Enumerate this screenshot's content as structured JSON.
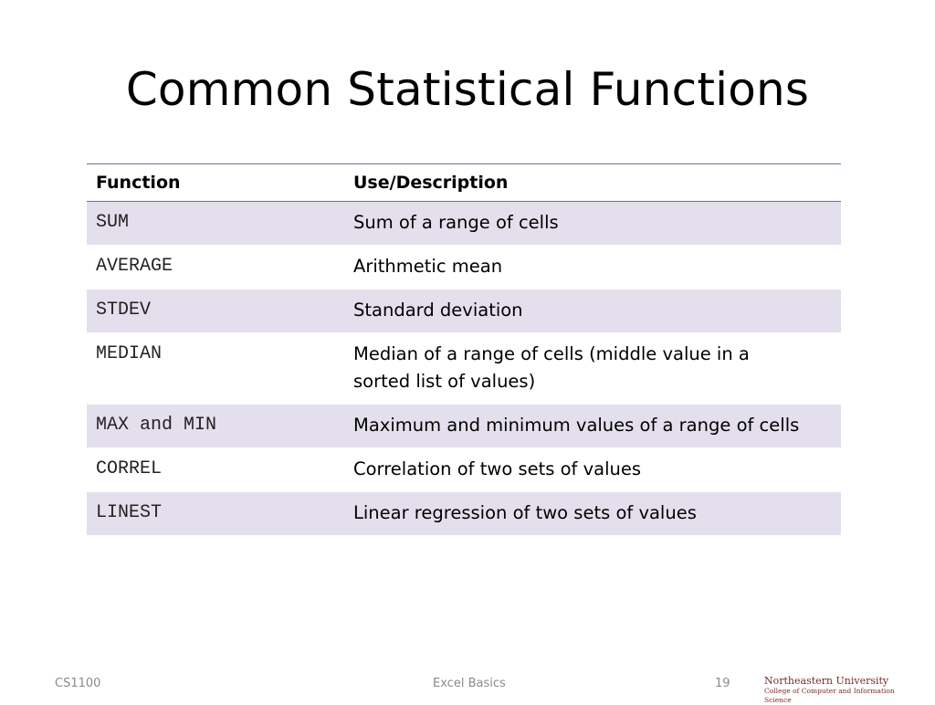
{
  "title": "Common Statistical Functions",
  "table": {
    "headers": {
      "function": "Function",
      "description": "Use/Description"
    },
    "rows": [
      {
        "function": "SUM",
        "description": "Sum of a range of cells"
      },
      {
        "function": "AVERAGE",
        "description": "Arithmetic mean"
      },
      {
        "function": "STDEV",
        "description": "Standard deviation"
      },
      {
        "function": "MEDIAN",
        "description": "Median of a range of cells (middle value in a sorted list of values)"
      },
      {
        "function": "MAX and MIN",
        "description": "Maximum and minimum values of a range of cells"
      },
      {
        "function": "CORREL",
        "description": "Correlation of two sets of values"
      },
      {
        "function": "LINEST",
        "description": "Linear regression of two sets of values"
      }
    ]
  },
  "footer": {
    "course": "CS1100",
    "topic": "Excel Basics",
    "page_number": "19"
  },
  "logo": {
    "line1": "Northeastern University",
    "line2": "College of Computer and Information Science"
  },
  "colors": {
    "accent": "#8064a2",
    "row_shade": "#e4dfec"
  }
}
